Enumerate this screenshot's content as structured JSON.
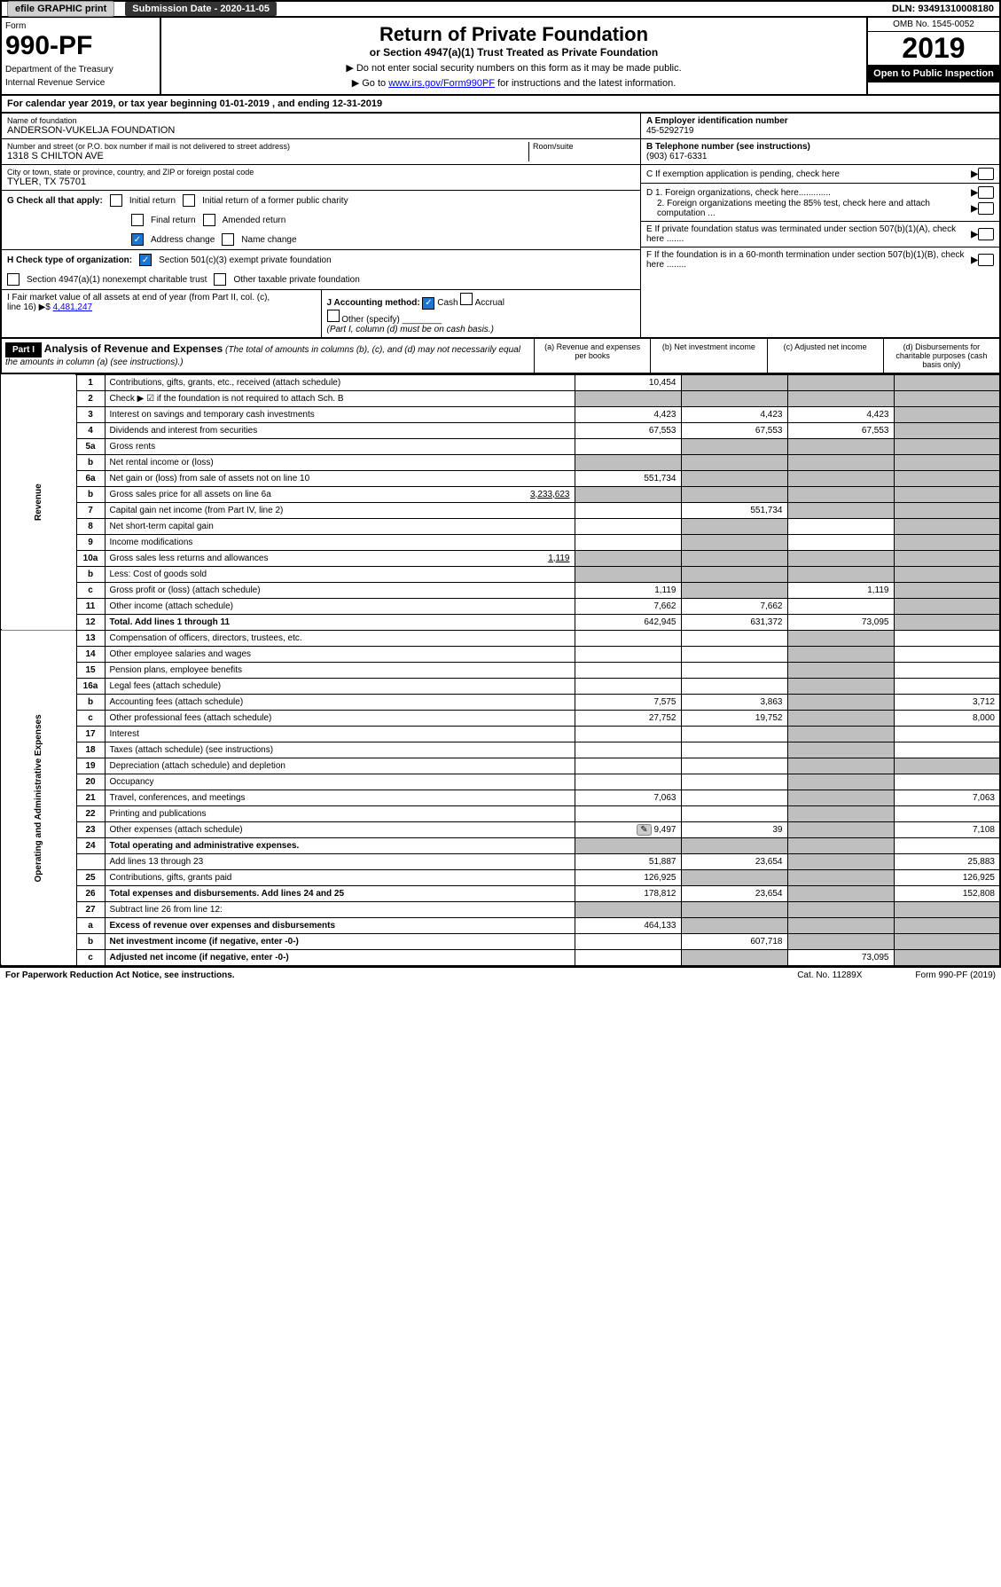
{
  "topbar": {
    "efile": "efile GRAPHIC print",
    "submission_label": "Submission Date - 2020-11-05",
    "dln": "DLN: 93491310008180"
  },
  "header": {
    "form_label": "Form",
    "form_number": "990-PF",
    "dept1": "Department of the Treasury",
    "dept2": "Internal Revenue Service",
    "title": "Return of Private Foundation",
    "subtitle": "or Section 4947(a)(1) Trust Treated as Private Foundation",
    "notice1": "▶ Do not enter social security numbers on this form as it may be made public.",
    "notice2_pre": "▶ Go to ",
    "notice2_link": "www.irs.gov/Form990PF",
    "notice2_post": " for instructions and the latest information.",
    "omb": "OMB No. 1545-0052",
    "year": "2019",
    "open": "Open to Public Inspection"
  },
  "calyear": "For calendar year 2019, or tax year beginning 01-01-2019                          , and ending 12-31-2019",
  "info": {
    "name_label": "Name of foundation",
    "name": "ANDERSON-VUKELJA FOUNDATION",
    "addr_label": "Number and street (or P.O. box number if mail is not delivered to street address)",
    "addr": "1318 S CHILTON AVE",
    "room_label": "Room/suite",
    "city_label": "City or town, state or province, country, and ZIP or foreign postal code",
    "city": "TYLER, TX  75701",
    "a_label": "A Employer identification number",
    "a_val": "45-5292719",
    "b_label": "B Telephone number (see instructions)",
    "b_val": "(903) 617-6331",
    "c_label": "C If exemption application is pending, check here",
    "d1": "D 1. Foreign organizations, check here.............",
    "d2": "2. Foreign organizations meeting the 85% test, check here and attach computation ...",
    "e_label": "E  If private foundation status was terminated under section 507(b)(1)(A), check here .......",
    "f_label": "F  If the foundation is in a 60-month termination under section 507(b)(1)(B), check here ........"
  },
  "g": {
    "label": "G Check all that apply:",
    "initial": "Initial return",
    "initial_former": "Initial return of a former public charity",
    "final": "Final return",
    "amended": "Amended return",
    "address": "Address change",
    "namechg": "Name change"
  },
  "h": {
    "label": "H Check type of organization:",
    "s501": "Section 501(c)(3) exempt private foundation",
    "s4947": "Section 4947(a)(1) nonexempt charitable trust",
    "other": "Other taxable private foundation"
  },
  "i": {
    "label": "I Fair market value of all assets at end of year (from Part II, col. (c),",
    "line": "line 16) ▶$  ",
    "val": "4,481,247"
  },
  "j": {
    "label": "J Accounting method:",
    "cash": "Cash",
    "accrual": "Accrual",
    "other": "Other (specify)",
    "note": "(Part I, column (d) must be on cash basis.)"
  },
  "part1": {
    "tag": "Part I",
    "title": "Analysis of Revenue and Expenses",
    "note": " (The total of amounts in columns (b), (c), and (d) may not necessarily equal the amounts in column (a) (see instructions).)",
    "col_a": "(a)    Revenue and expenses per books",
    "col_b": "(b)  Net investment income",
    "col_c": "(c)  Adjusted net income",
    "col_d": "(d)  Disbursements for charitable purposes (cash basis only)"
  },
  "side": {
    "rev": "Revenue",
    "exp": "Operating and Administrative Expenses"
  },
  "rows": {
    "r1": {
      "n": "1",
      "d": "Contributions, gifts, grants, etc., received (attach schedule)",
      "a": "10,454"
    },
    "r2": {
      "n": "2",
      "d": "Check ▶ ☑ if the foundation is not required to attach Sch. B"
    },
    "r3": {
      "n": "3",
      "d": "Interest on savings and temporary cash investments",
      "a": "4,423",
      "b": "4,423",
      "c": "4,423"
    },
    "r4": {
      "n": "4",
      "d": "Dividends and interest from securities",
      "a": "67,553",
      "b": "67,553",
      "c": "67,553"
    },
    "r5a": {
      "n": "5a",
      "d": "Gross rents"
    },
    "r5b": {
      "n": "b",
      "d": "Net rental income or (loss)"
    },
    "r6a": {
      "n": "6a",
      "d": "Net gain or (loss) from sale of assets not on line 10",
      "a": "551,734"
    },
    "r6b": {
      "n": "b",
      "d": "Gross sales price for all assets on line 6a",
      "inl": "3,233,623"
    },
    "r7": {
      "n": "7",
      "d": "Capital gain net income (from Part IV, line 2)",
      "b": "551,734"
    },
    "r8": {
      "n": "8",
      "d": "Net short-term capital gain"
    },
    "r9": {
      "n": "9",
      "d": "Income modifications"
    },
    "r10a": {
      "n": "10a",
      "d": "Gross sales less returns and allowances",
      "inl": "1,119"
    },
    "r10b": {
      "n": "b",
      "d": "Less: Cost of goods sold"
    },
    "r10c": {
      "n": "c",
      "d": "Gross profit or (loss) (attach schedule)",
      "a": "1,119",
      "c": "1,119"
    },
    "r11": {
      "n": "11",
      "d": "Other income (attach schedule)",
      "a": "7,662",
      "b": "7,662"
    },
    "r12": {
      "n": "12",
      "d": "Total. Add lines 1 through 11",
      "a": "642,945",
      "b": "631,372",
      "c": "73,095",
      "bold": true
    },
    "r13": {
      "n": "13",
      "d": "Compensation of officers, directors, trustees, etc."
    },
    "r14": {
      "n": "14",
      "d": "Other employee salaries and wages"
    },
    "r15": {
      "n": "15",
      "d": "Pension plans, employee benefits"
    },
    "r16a": {
      "n": "16a",
      "d": "Legal fees (attach schedule)"
    },
    "r16b": {
      "n": "b",
      "d": "Accounting fees (attach schedule)",
      "a": "7,575",
      "b": "3,863",
      "dd": "3,712"
    },
    "r16c": {
      "n": "c",
      "d": "Other professional fees (attach schedule)",
      "a": "27,752",
      "b": "19,752",
      "dd": "8,000"
    },
    "r17": {
      "n": "17",
      "d": "Interest"
    },
    "r18": {
      "n": "18",
      "d": "Taxes (attach schedule) (see instructions)"
    },
    "r19": {
      "n": "19",
      "d": "Depreciation (attach schedule) and depletion"
    },
    "r20": {
      "n": "20",
      "d": "Occupancy"
    },
    "r21": {
      "n": "21",
      "d": "Travel, conferences, and meetings",
      "a": "7,063",
      "dd": "7,063"
    },
    "r22": {
      "n": "22",
      "d": "Printing and publications"
    },
    "r23": {
      "n": "23",
      "d": "Other expenses (attach schedule)",
      "a": "9,497",
      "b": "39",
      "dd": "7,108",
      "icon": true
    },
    "r24": {
      "n": "24",
      "d": "Total operating and administrative expenses.",
      "bold": true
    },
    "r24b": {
      "n": "",
      "d": "Add lines 13 through 23",
      "a": "51,887",
      "b": "23,654",
      "dd": "25,883"
    },
    "r25": {
      "n": "25",
      "d": "Contributions, gifts, grants paid",
      "a": "126,925",
      "dd": "126,925"
    },
    "r26": {
      "n": "26",
      "d": "Total expenses and disbursements. Add lines 24 and 25",
      "a": "178,812",
      "b": "23,654",
      "dd": "152,808",
      "bold": true
    },
    "r27": {
      "n": "27",
      "d": "Subtract line 26 from line 12:"
    },
    "r27a": {
      "n": "a",
      "d": "Excess of revenue over expenses and disbursements",
      "a": "464,133",
      "bold": true
    },
    "r27b": {
      "n": "b",
      "d": "Net investment income (if negative, enter -0-)",
      "b": "607,718",
      "bold": true
    },
    "r27c": {
      "n": "c",
      "d": "Adjusted net income (if negative, enter -0-)",
      "c": "73,095",
      "bold": true
    }
  },
  "footer": {
    "left": "For Paperwork Reduction Act Notice, see instructions.",
    "cat": "Cat. No. 11289X",
    "right": "Form 990-PF (2019)"
  }
}
